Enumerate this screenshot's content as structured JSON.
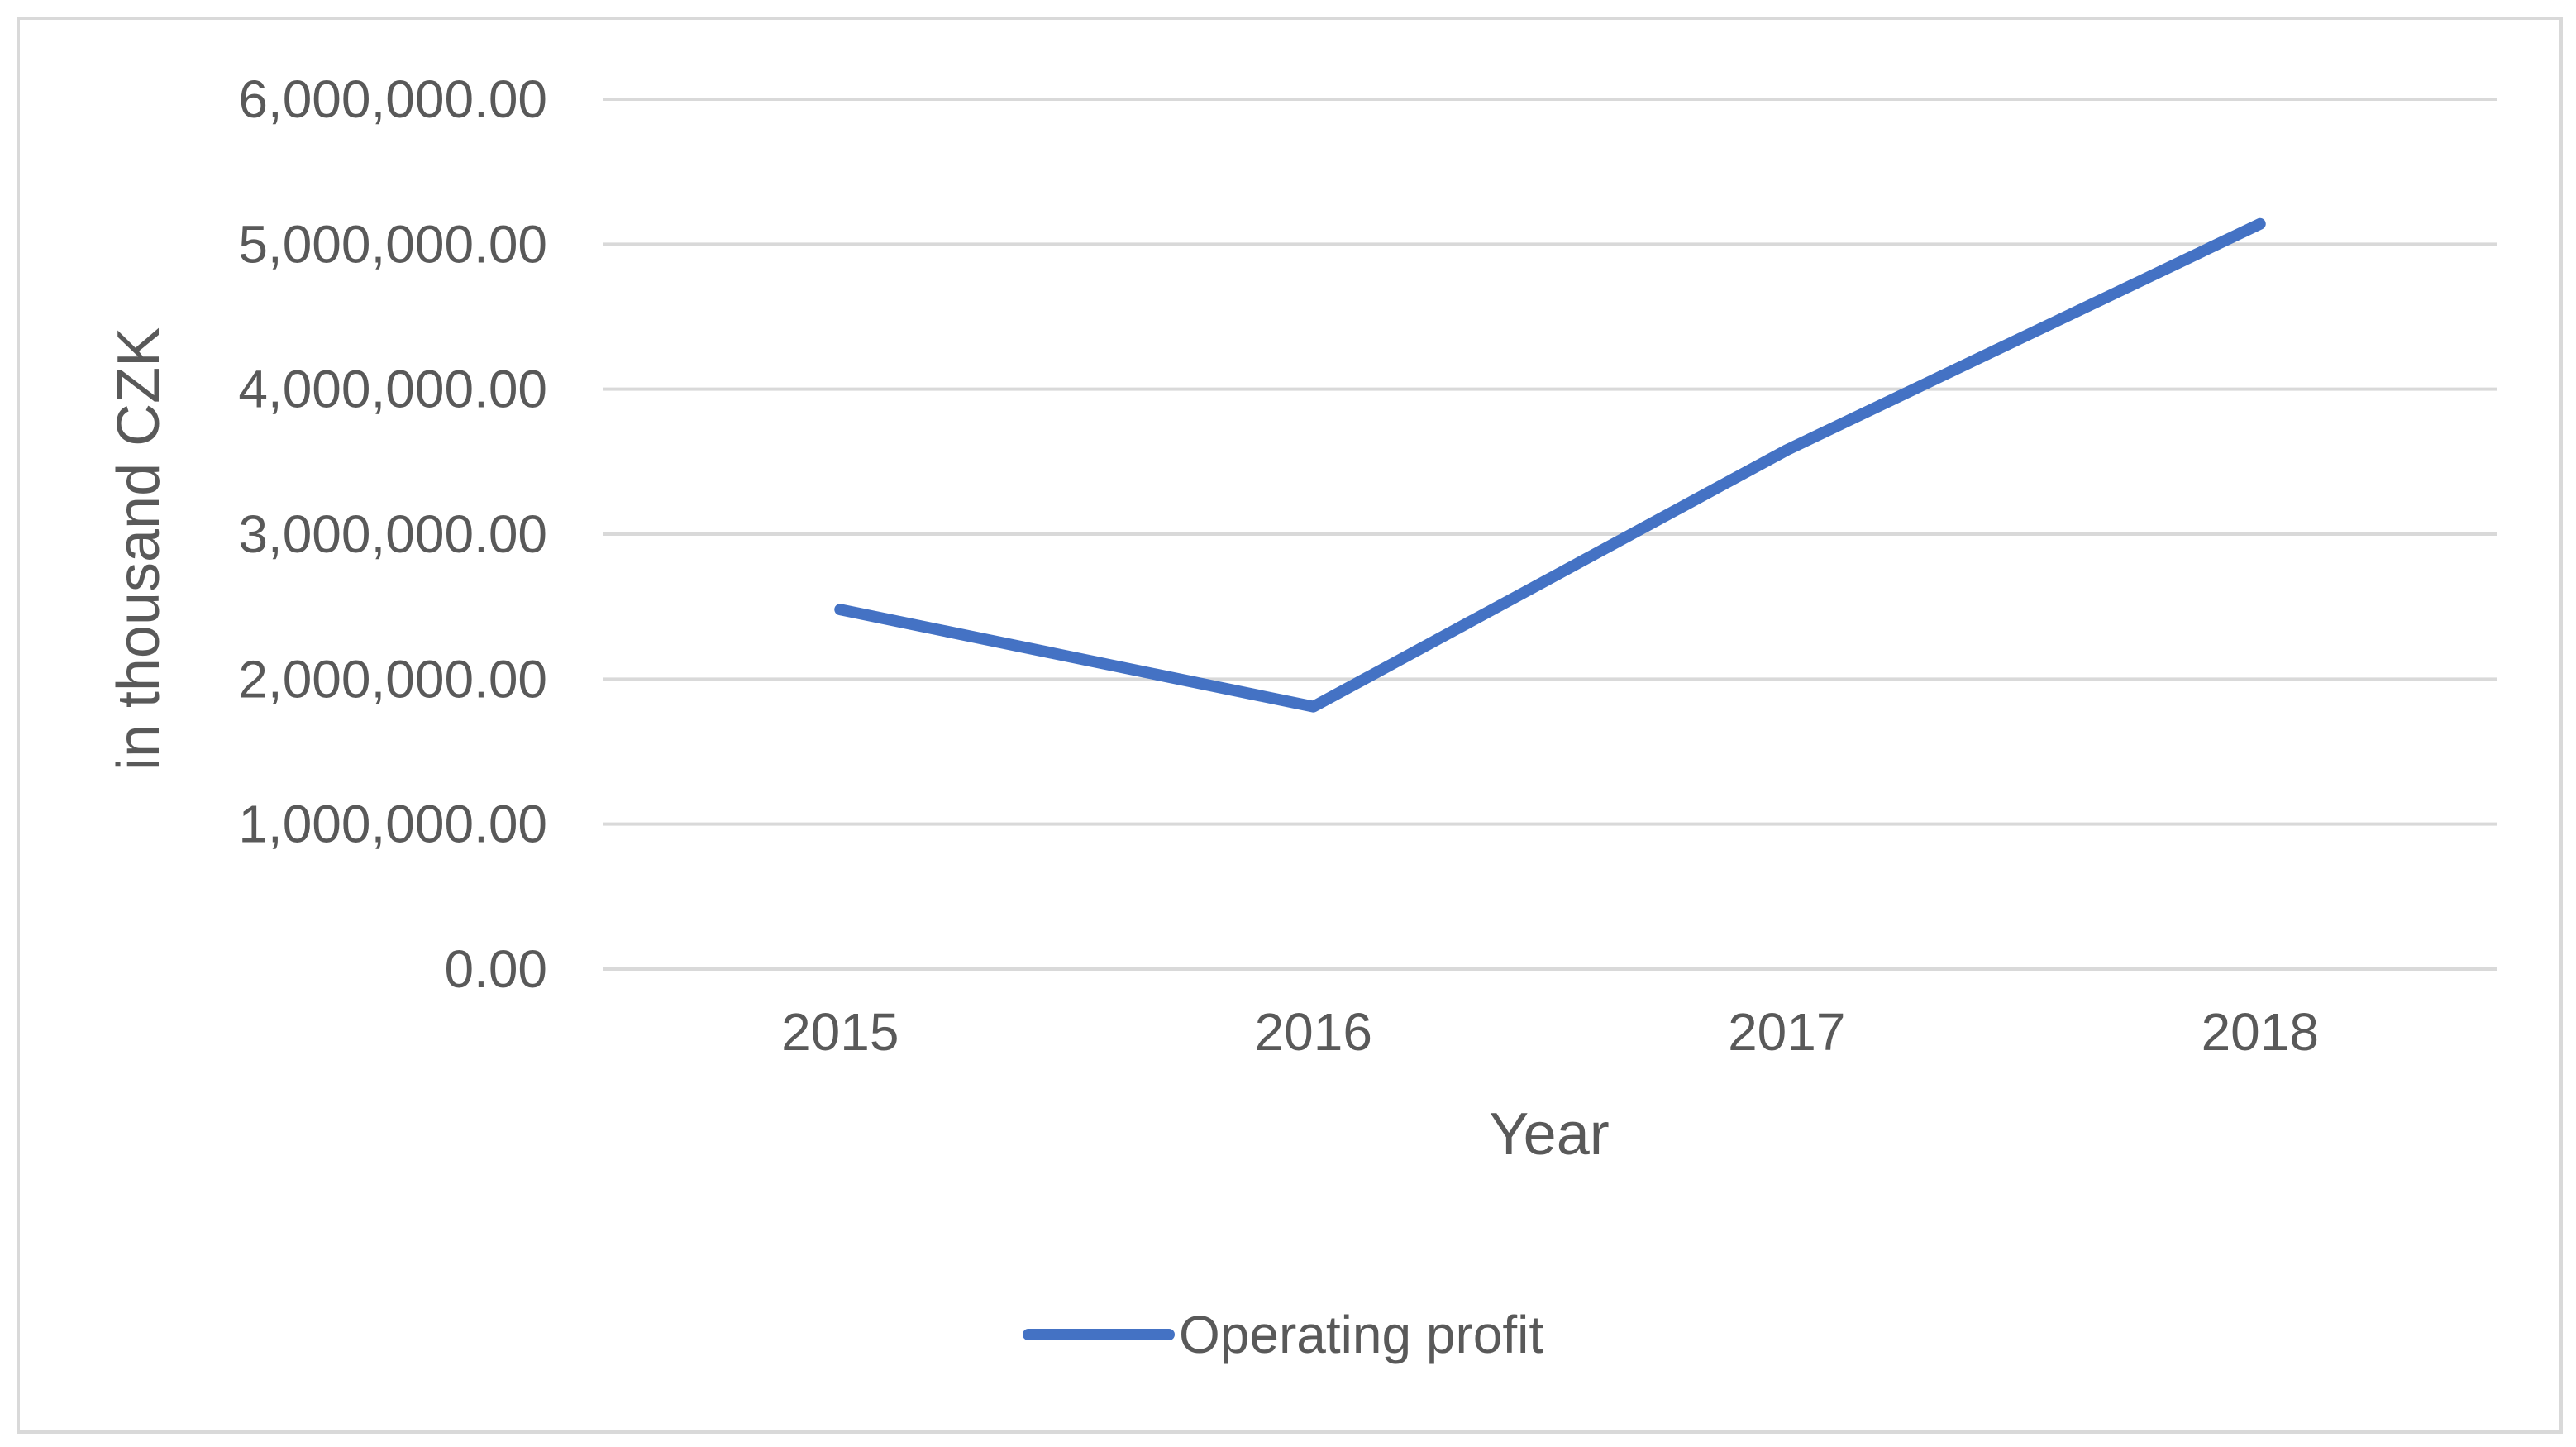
{
  "chart_data": {
    "type": "line",
    "title": "",
    "xlabel": "Year",
    "ylabel": "in thousand CZK",
    "categories": [
      "2015",
      "2016",
      "2017",
      "2018"
    ],
    "series": [
      {
        "name": "Operating profit",
        "values": [
          2480000,
          1810000,
          3580000,
          5140000
        ],
        "color": "#4472c4"
      }
    ],
    "ylim": [
      0,
      6000000
    ],
    "yticks": [
      "0.00",
      "1,000,000.00",
      "2,000,000.00",
      "3,000,000.00",
      "4,000,000.00",
      "5,000,000.00",
      "6,000,000.00"
    ],
    "grid": true,
    "legend": "bottom"
  }
}
